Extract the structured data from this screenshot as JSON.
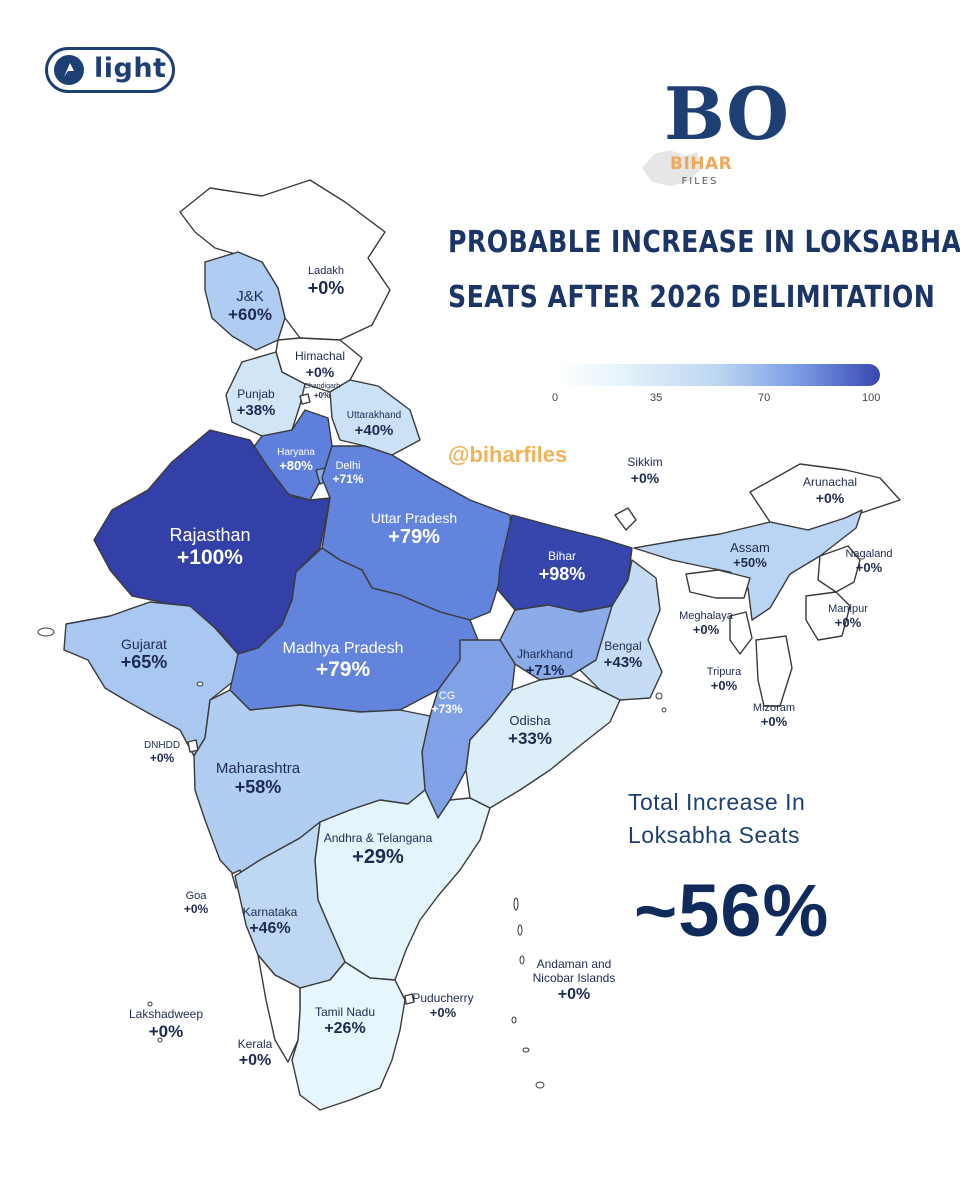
{
  "brand": {
    "badge_label": "light",
    "logo_name": "BIHAR",
    "logo_sub": "FILES",
    "logo_mark": "BO"
  },
  "title_lines": [
    "PROBABLE INCREASE IN LOKSABHA",
    "SEATS AFTER 2026 DELIMITATION"
  ],
  "color_scale": {
    "ticks": [
      "0",
      "35",
      "70",
      "100"
    ],
    "min": 0,
    "max": 100,
    "colors": {
      "low": "#ffffff",
      "mid": "#bcd6f2",
      "high": "#3848b0"
    }
  },
  "handle": "@biharfiles",
  "total": {
    "label_line1": "Total Increase In",
    "label_line2": "Loksabha Seats",
    "value": "~56%"
  },
  "regions": [
    {
      "key": "ladakh",
      "name": "Ladakh",
      "pct": "+0%",
      "value": 0
    },
    {
      "key": "jk",
      "name": "J&K",
      "pct": "+60%",
      "value": 60
    },
    {
      "key": "himachal",
      "name": "Himachal",
      "pct": "+0%",
      "value": 0
    },
    {
      "key": "punjab",
      "name": "Punjab",
      "pct": "+38%",
      "value": 38
    },
    {
      "key": "chandigarh",
      "name": "Chandigarh",
      "pct": "+0%",
      "value": 0
    },
    {
      "key": "uttarakhand",
      "name": "Uttarakhand",
      "pct": "+40%",
      "value": 40
    },
    {
      "key": "haryana",
      "name": "Haryana",
      "pct": "+80%",
      "value": 80
    },
    {
      "key": "delhi",
      "name": "Delhi",
      "pct": "+71%",
      "value": 71
    },
    {
      "key": "rajasthan",
      "name": "Rajasthan",
      "pct": "+100%",
      "value": 100
    },
    {
      "key": "uttar_pradesh",
      "name": "Uttar Pradesh",
      "pct": "+79%",
      "value": 79
    },
    {
      "key": "bihar",
      "name": "Bihar",
      "pct": "+98%",
      "value": 98
    },
    {
      "key": "sikkim",
      "name": "Sikkim",
      "pct": "+0%",
      "value": 0
    },
    {
      "key": "arunachal",
      "name": "Arunachal",
      "pct": "+0%",
      "value": 0
    },
    {
      "key": "assam",
      "name": "Assam",
      "pct": "+50%",
      "value": 50
    },
    {
      "key": "nagaland",
      "name": "Nagaland",
      "pct": "+0%",
      "value": 0
    },
    {
      "key": "meghalaya",
      "name": "Meghalaya",
      "pct": "+0%",
      "value": 0
    },
    {
      "key": "manipur",
      "name": "Manipur",
      "pct": "+0%",
      "value": 0
    },
    {
      "key": "tripura",
      "name": "Tripura",
      "pct": "+0%",
      "value": 0
    },
    {
      "key": "mizoram",
      "name": "Mizoram",
      "pct": "+0%",
      "value": 0
    },
    {
      "key": "gujarat",
      "name": "Gujarat",
      "pct": "+65%",
      "value": 65
    },
    {
      "key": "madhya_pradesh",
      "name": "Madhya Pradesh",
      "pct": "+79%",
      "value": 79
    },
    {
      "key": "jharkhand",
      "name": "Jharkhand",
      "pct": "+71%",
      "value": 71
    },
    {
      "key": "bengal",
      "name": "Bengal",
      "pct": "+43%",
      "value": 43
    },
    {
      "key": "cg",
      "name": "CG",
      "pct": "+73%",
      "value": 73
    },
    {
      "key": "odisha",
      "name": "Odisha",
      "pct": "+33%",
      "value": 33
    },
    {
      "key": "dnhdd",
      "name": "DNHDD",
      "pct": "+0%",
      "value": 0
    },
    {
      "key": "maharashtra",
      "name": "Maharashtra",
      "pct": "+58%",
      "value": 58
    },
    {
      "key": "andhra_telangana",
      "name": "Andhra & Telangana",
      "pct": "+29%",
      "value": 29
    },
    {
      "key": "goa",
      "name": "Goa",
      "pct": "+0%",
      "value": 0
    },
    {
      "key": "karnataka",
      "name": "Karnataka",
      "pct": "+46%",
      "value": 46
    },
    {
      "key": "andaman",
      "name": "Andaman and\nNicobar Islands",
      "pct": "+0%",
      "value": 0
    },
    {
      "key": "lakshadweep",
      "name": "Lakshadweep",
      "pct": "+0%",
      "value": 0
    },
    {
      "key": "puducherry",
      "name": "Puducherry",
      "pct": "+0%",
      "value": 0
    },
    {
      "key": "tamil_nadu",
      "name": "Tamil Nadu",
      "pct": "+26%",
      "value": 26
    },
    {
      "key": "kerala",
      "name": "Kerala",
      "pct": "+0%",
      "value": 0
    }
  ]
}
